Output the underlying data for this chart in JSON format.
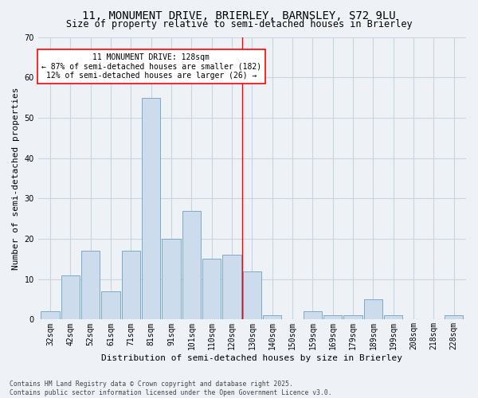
{
  "title": "11, MONUMENT DRIVE, BRIERLEY, BARNSLEY, S72 9LU",
  "subtitle": "Size of property relative to semi-detached houses in Brierley",
  "xlabel": "Distribution of semi-detached houses by size in Brierley",
  "ylabel": "Number of semi-detached properties",
  "footer_line1": "Contains HM Land Registry data © Crown copyright and database right 2025.",
  "footer_line2": "Contains public sector information licensed under the Open Government Licence v3.0.",
  "annotation_title": "11 MONUMENT DRIVE: 128sqm",
  "annotation_line2": "← 87% of semi-detached houses are smaller (182)",
  "annotation_line3": "12% of semi-detached houses are larger (26) →",
  "property_size": 128,
  "bar_categories": [
    "32sqm",
    "42sqm",
    "52sqm",
    "61sqm",
    "71sqm",
    "81sqm",
    "91sqm",
    "101sqm",
    "110sqm",
    "120sqm",
    "130sqm",
    "140sqm",
    "150sqm",
    "159sqm",
    "169sqm",
    "179sqm",
    "189sqm",
    "199sqm",
    "208sqm",
    "218sqm",
    "228sqm"
  ],
  "bar_values": [
    2,
    11,
    17,
    7,
    17,
    55,
    20,
    27,
    15,
    16,
    12,
    1,
    0,
    2,
    1,
    1,
    5,
    1,
    0,
    0,
    1
  ],
  "bin_width": 9,
  "bar_color": "#ccdcec",
  "bar_edge_color": "#7aaaca",
  "vline_x": 9,
  "vline_color": "red",
  "bg_color": "#eef2f7",
  "grid_color": "#c8d4e0",
  "ylim": [
    0,
    70
  ],
  "yticks": [
    0,
    10,
    20,
    30,
    40,
    50,
    60,
    70
  ],
  "annotation_box_facecolor": "white",
  "annotation_box_edgecolor": "red",
  "title_fontsize": 10,
  "subtitle_fontsize": 8.5,
  "axis_label_fontsize": 8,
  "tick_fontsize": 7,
  "annotation_fontsize": 7,
  "footer_fontsize": 5.8
}
